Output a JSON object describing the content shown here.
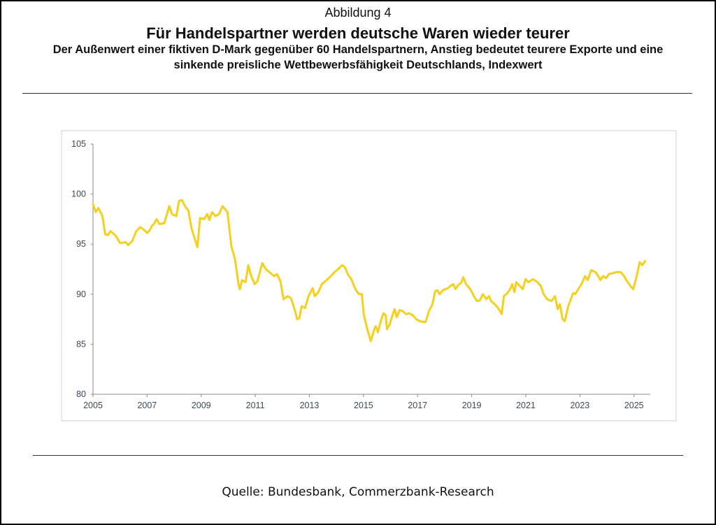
{
  "chart_data": {
    "type": "line",
    "figure_label": "Abbildung 4",
    "title": "Für Handelspartner werden deutsche Waren wieder teurer",
    "subtitle": "Der Außenwert einer fiktiven D-Mark gegenüber 60 Handelspartnern, Anstieg bedeutet teurere Exporte und eine sinkende preisliche Wettbewerbsfähigkeit Deutschlands, Indexwert",
    "source": "Quelle: Bundesbank, Commerzbank-Research",
    "color": "#f7cf1d",
    "xlim": [
      2005,
      2025.55
    ],
    "ylim": [
      80,
      105
    ],
    "xticks": [
      2005,
      2007,
      2009,
      2011,
      2013,
      2015,
      2017,
      2019,
      2021,
      2023,
      2025
    ],
    "yticks": [
      80,
      85,
      90,
      95,
      100,
      105
    ],
    "grid": false,
    "x": [
      2005.0,
      2005.1,
      2005.2,
      2005.35,
      2005.45,
      2005.55,
      2005.65,
      2005.85,
      2006.0,
      2006.2,
      2006.3,
      2006.45,
      2006.6,
      2006.75,
      2006.9,
      2007.0,
      2007.1,
      2007.2,
      2007.25,
      2007.35,
      2007.46,
      2007.64,
      2007.82,
      2007.92,
      2008.08,
      2008.18,
      2008.29,
      2008.42,
      2008.52,
      2008.65,
      2008.86,
      2008.96,
      2009.11,
      2009.22,
      2009.3,
      2009.4,
      2009.53,
      2009.66,
      2009.79,
      2009.97,
      2010.12,
      2010.25,
      2010.38,
      2010.43,
      2010.51,
      2010.64,
      2010.74,
      2010.85,
      2010.98,
      2011.08,
      2011.26,
      2011.39,
      2011.52,
      2011.7,
      2011.8,
      2011.93,
      2012.04,
      2012.19,
      2012.32,
      2012.43,
      2012.55,
      2012.63,
      2012.71,
      2012.84,
      2012.97,
      2013.12,
      2013.2,
      2013.33,
      2013.46,
      2013.59,
      2013.72,
      2013.93,
      2014.06,
      2014.21,
      2014.31,
      2014.42,
      2014.55,
      2014.7,
      2014.83,
      2014.94,
      2015.01,
      2015.14,
      2015.27,
      2015.4,
      2015.45,
      2015.53,
      2015.66,
      2015.74,
      2015.82,
      2015.87,
      2015.97,
      2016.07,
      2016.15,
      2016.23,
      2016.33,
      2016.46,
      2016.57,
      2016.69,
      2016.82,
      2016.95,
      2017.08,
      2017.29,
      2017.42,
      2017.55,
      2017.65,
      2017.73,
      2017.81,
      2017.94,
      2018.12,
      2018.25,
      2018.32,
      2018.4,
      2018.53,
      2018.61,
      2018.69,
      2018.79,
      2018.95,
      2019.1,
      2019.2,
      2019.31,
      2019.41,
      2019.54,
      2019.64,
      2019.72,
      2019.85,
      2019.98,
      2020.11,
      2020.19,
      2020.32,
      2020.42,
      2020.5,
      2020.58,
      2020.65,
      2020.78,
      2020.89,
      2020.99,
      2021.09,
      2021.27,
      2021.43,
      2021.56,
      2021.66,
      2021.79,
      2021.95,
      2022.08,
      2022.18,
      2022.26,
      2022.36,
      2022.44,
      2022.57,
      2022.75,
      2022.83,
      2022.96,
      2023.06,
      2023.19,
      2023.29,
      2023.42,
      2023.58,
      2023.68,
      2023.76,
      2023.86,
      2023.97,
      2024.07,
      2024.22,
      2024.35,
      2024.51,
      2024.61,
      2024.72,
      2024.87,
      2024.97,
      2025.1,
      2025.21,
      2025.31,
      2025.41
    ],
    "values": [
      99.0,
      98.2,
      98.6,
      97.8,
      96.0,
      95.9,
      96.3,
      95.8,
      95.1,
      95.2,
      94.9,
      95.3,
      96.3,
      96.7,
      96.4,
      96.1,
      96.4,
      96.9,
      97.0,
      97.5,
      97.0,
      97.1,
      98.8,
      98.0,
      97.8,
      99.3,
      99.4,
      98.7,
      98.4,
      96.5,
      94.7,
      97.6,
      97.5,
      98.0,
      97.4,
      98.2,
      97.8,
      98.0,
      98.8,
      98.2,
      94.7,
      93.5,
      91.0,
      90.5,
      91.4,
      91.2,
      92.9,
      91.8,
      91.0,
      91.3,
      93.1,
      92.5,
      92.2,
      91.8,
      92.0,
      91.3,
      89.5,
      89.8,
      89.6,
      88.7,
      87.5,
      87.6,
      88.8,
      88.6,
      89.8,
      90.6,
      89.8,
      90.2,
      91.0,
      91.3,
      91.6,
      92.2,
      92.5,
      92.9,
      92.7,
      92.0,
      91.5,
      90.5,
      90.0,
      90.0,
      88.0,
      86.5,
      85.3,
      86.5,
      86.8,
      86.2,
      87.5,
      88.1,
      87.9,
      86.5,
      87.0,
      87.9,
      88.5,
      87.7,
      88.4,
      88.3,
      88.0,
      88.1,
      87.9,
      87.5,
      87.3,
      87.2,
      88.3,
      89.0,
      90.3,
      90.4,
      90.0,
      90.4,
      90.6,
      90.9,
      91.0,
      90.5,
      91.0,
      91.1,
      91.7,
      91.0,
      90.5,
      89.7,
      89.3,
      89.4,
      90.0,
      89.5,
      89.8,
      89.3,
      89.0,
      88.6,
      88.0,
      89.8,
      90.1,
      90.5,
      91.0,
      90.2,
      91.2,
      90.8,
      90.5,
      91.5,
      91.2,
      91.5,
      91.2,
      90.8,
      90.0,
      89.5,
      89.3,
      89.8,
      88.5,
      89.0,
      87.5,
      87.3,
      88.8,
      90.1,
      90.0,
      90.6,
      91.0,
      91.8,
      91.4,
      92.4,
      92.2,
      91.8,
      91.4,
      91.8,
      91.6,
      92.0,
      92.1,
      92.2,
      92.2,
      91.9,
      91.4,
      90.8,
      90.5,
      91.8,
      93.2,
      92.9,
      93.3
    ]
  }
}
